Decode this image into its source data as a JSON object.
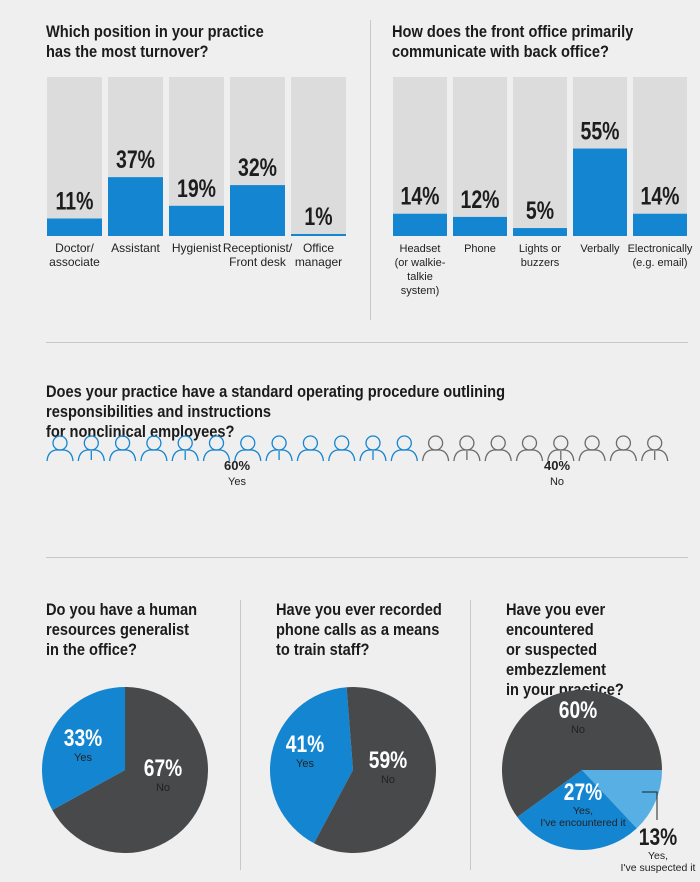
{
  "colors": {
    "blue": "#1385d1",
    "light_blue": "#57afe3",
    "dark_gray": "#48494b",
    "bar_bg": "#dcdcdc",
    "background": "#efefef"
  },
  "section1": {
    "title": "Which position in your practice\nhas the most turnover?",
    "categories": [
      "Doctor/\nassociate",
      "Assistant",
      "Hygienist",
      "Receptionist/\nFront desk",
      "Office\nmanager"
    ]
  },
  "section2": {
    "title": "How does the front office primarily\ncommunicate with back office?",
    "categories": [
      "Headset\n(or walkie-\ntalkie\nsystem)",
      "Phone",
      "Lights or\nbuzzers",
      "Verbally",
      "Electronically\n(e.g. email)"
    ]
  },
  "section3": {
    "title": "Does your practice have a standard operating procedure outlining responsibilities and instructions\nfor nonclinical employees?",
    "yes_pct": "60%",
    "yes_label": "Yes",
    "no_pct": "40%",
    "no_label": "No",
    "people_total": 20,
    "people_yes": 12,
    "icon": "person-icon"
  },
  "section4": {
    "title": "Do you have a human\nresources generalist\nin the office?"
  },
  "section5": {
    "title": "Have you ever recorded\nphone calls as a means\nto train staff?"
  },
  "section6": {
    "title": "Have you ever encountered\nor suspected embezzlement\nin your practice?"
  },
  "chart_data": [
    {
      "type": "bar",
      "title": "Which position in your practice has the most turnover?",
      "categories": [
        "Doctor/ associate",
        "Assistant",
        "Hygienist",
        "Receptionist/ Front desk",
        "Office manager"
      ],
      "values": [
        11,
        37,
        19,
        32,
        1
      ],
      "value_labels": [
        "11%",
        "37%",
        "19%",
        "32%",
        "1%"
      ],
      "ylim": [
        0,
        100
      ]
    },
    {
      "type": "bar",
      "title": "How does the front office primarily communicate with back office?",
      "categories": [
        "Headset (or walkie-talkie system)",
        "Phone",
        "Lights or buzzers",
        "Verbally",
        "Electronically (e.g. email)"
      ],
      "values": [
        14,
        12,
        5,
        55,
        14
      ],
      "value_labels": [
        "14%",
        "12%",
        "5%",
        "55%",
        "14%"
      ],
      "ylim": [
        0,
        100
      ]
    },
    {
      "type": "pie",
      "title": "Does your practice have a standard operating procedure outlining responsibilities and instructions for nonclinical employees?",
      "categories": [
        "Yes",
        "No"
      ],
      "values": [
        60,
        40
      ]
    },
    {
      "type": "pie",
      "title": "Do you have a human resources generalist in the office?",
      "slices": [
        {
          "label": "Yes",
          "value": 33,
          "value_label": "33%",
          "color": "#1385d1"
        },
        {
          "label": "No",
          "value": 67,
          "value_label": "67%",
          "color": "#48494b"
        }
      ]
    },
    {
      "type": "pie",
      "title": "Have you ever recorded phone calls as a means to train staff?",
      "slices": [
        {
          "label": "Yes",
          "value": 41,
          "value_label": "41%",
          "color": "#1385d1"
        },
        {
          "label": "No",
          "value": 59,
          "value_label": "59%",
          "color": "#48494b"
        }
      ]
    },
    {
      "type": "pie",
      "title": "Have you ever encountered or suspected embezzlement in your practice?",
      "slices": [
        {
          "label": "No",
          "value": 60,
          "value_label": "60%",
          "color": "#48494b"
        },
        {
          "label": "Yes, I've suspected it",
          "value": 13,
          "value_label": "13%",
          "color": "#57afe3"
        },
        {
          "label": "Yes, I've encountered it",
          "value": 27,
          "value_label": "27%",
          "color": "#1385d1"
        }
      ]
    }
  ]
}
